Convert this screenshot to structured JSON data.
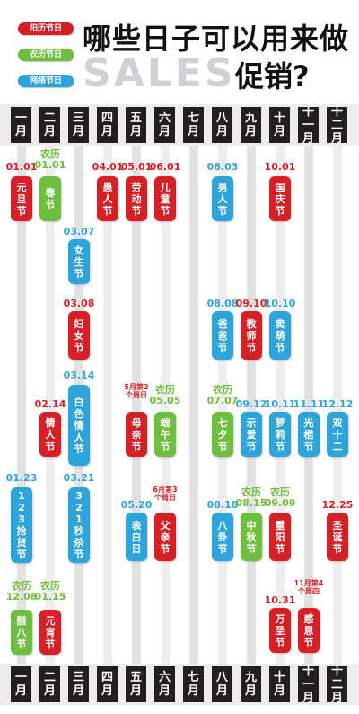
{
  "legend": [
    {
      "label": "阳历节日",
      "color": "#d61f26"
    },
    {
      "label": "农历节日",
      "color": "#6ebe3f"
    },
    {
      "label": "网络节日",
      "color": "#2ea4dc"
    }
  ],
  "title": {
    "top": "哪些日子可以用来做",
    "sales": "SALES",
    "bottom": "促销?"
  },
  "months": [
    "一月",
    "二月",
    "三月",
    "四月",
    "五月",
    "六月",
    "七月",
    "八月",
    "九月",
    "十月",
    "十一月",
    "十二月"
  ],
  "holidays": {
    "yuandan": {
      "date": "01.01",
      "name": "元旦节"
    },
    "chunjie": {
      "date": "农历 01.01",
      "name": "春节"
    },
    "yuren": {
      "date": "04.01",
      "name": "愚人节"
    },
    "laodong": {
      "date": "05.01",
      "name": "劳动节"
    },
    "ertong": {
      "date": "06.01",
      "name": "儿童节"
    },
    "nanren": {
      "date": "08.03",
      "name": "男人节"
    },
    "guoqing": {
      "date": "10.01",
      "name": "国庆节"
    },
    "nvsheng": {
      "date": "03.07",
      "name": "女生节"
    },
    "funv": {
      "date": "03.08",
      "name": "妇女节"
    },
    "baba": {
      "date": "08.08",
      "name": "爸爸节"
    },
    "jiaoshi": {
      "date": "09.10",
      "name": "教师节"
    },
    "maimeng": {
      "date": "10.10",
      "name": "卖萌节"
    },
    "baise": {
      "date": "03.14",
      "name": "白色情人节"
    },
    "qingren": {
      "date": "02.14",
      "name": "情人节"
    },
    "muqin": {
      "note": "5月第2个周日",
      "name": "母亲节"
    },
    "duanwu": {
      "date": "农历 05.05",
      "name": "端午节"
    },
    "qixi": {
      "date": "农历 07.07",
      "name": "七夕节"
    },
    "shiai": {
      "date": "09.12",
      "name": "示爱节"
    },
    "luoli": {
      "date": "10.11",
      "name": "萝莉节"
    },
    "guanggun": {
      "date": "11.11",
      "name": "光棍节"
    },
    "shuang12": {
      "date": "12.12",
      "name": "双十二"
    },
    "qianghuo": {
      "date": "01.23",
      "name": "123抢货节"
    },
    "miaosha": {
      "date": "03.21",
      "name": "321秒杀节"
    },
    "biaobai": {
      "date": "05.20",
      "name": "表白日"
    },
    "fuqin": {
      "note": "6月第3个周日",
      "name": "父亲节"
    },
    "bagua": {
      "date": "08.18",
      "name": "八卦节"
    },
    "zhongqiu": {
      "date": "农历 08.15",
      "name": "中秋节"
    },
    "chongyang": {
      "date": "农历 09.09",
      "name": "重阳节"
    },
    "shengdan": {
      "date": "12.25",
      "name": "圣诞节"
    },
    "laba": {
      "date": "农历 12.08",
      "name": "腊八节"
    },
    "yuanxiao": {
      "date": "农历 01.15",
      "name": "元宵节"
    },
    "wansheng": {
      "date": "10.31",
      "name": "万圣节"
    },
    "ganen": {
      "note": "11月第4个周四",
      "name": "感恩节"
    }
  }
}
